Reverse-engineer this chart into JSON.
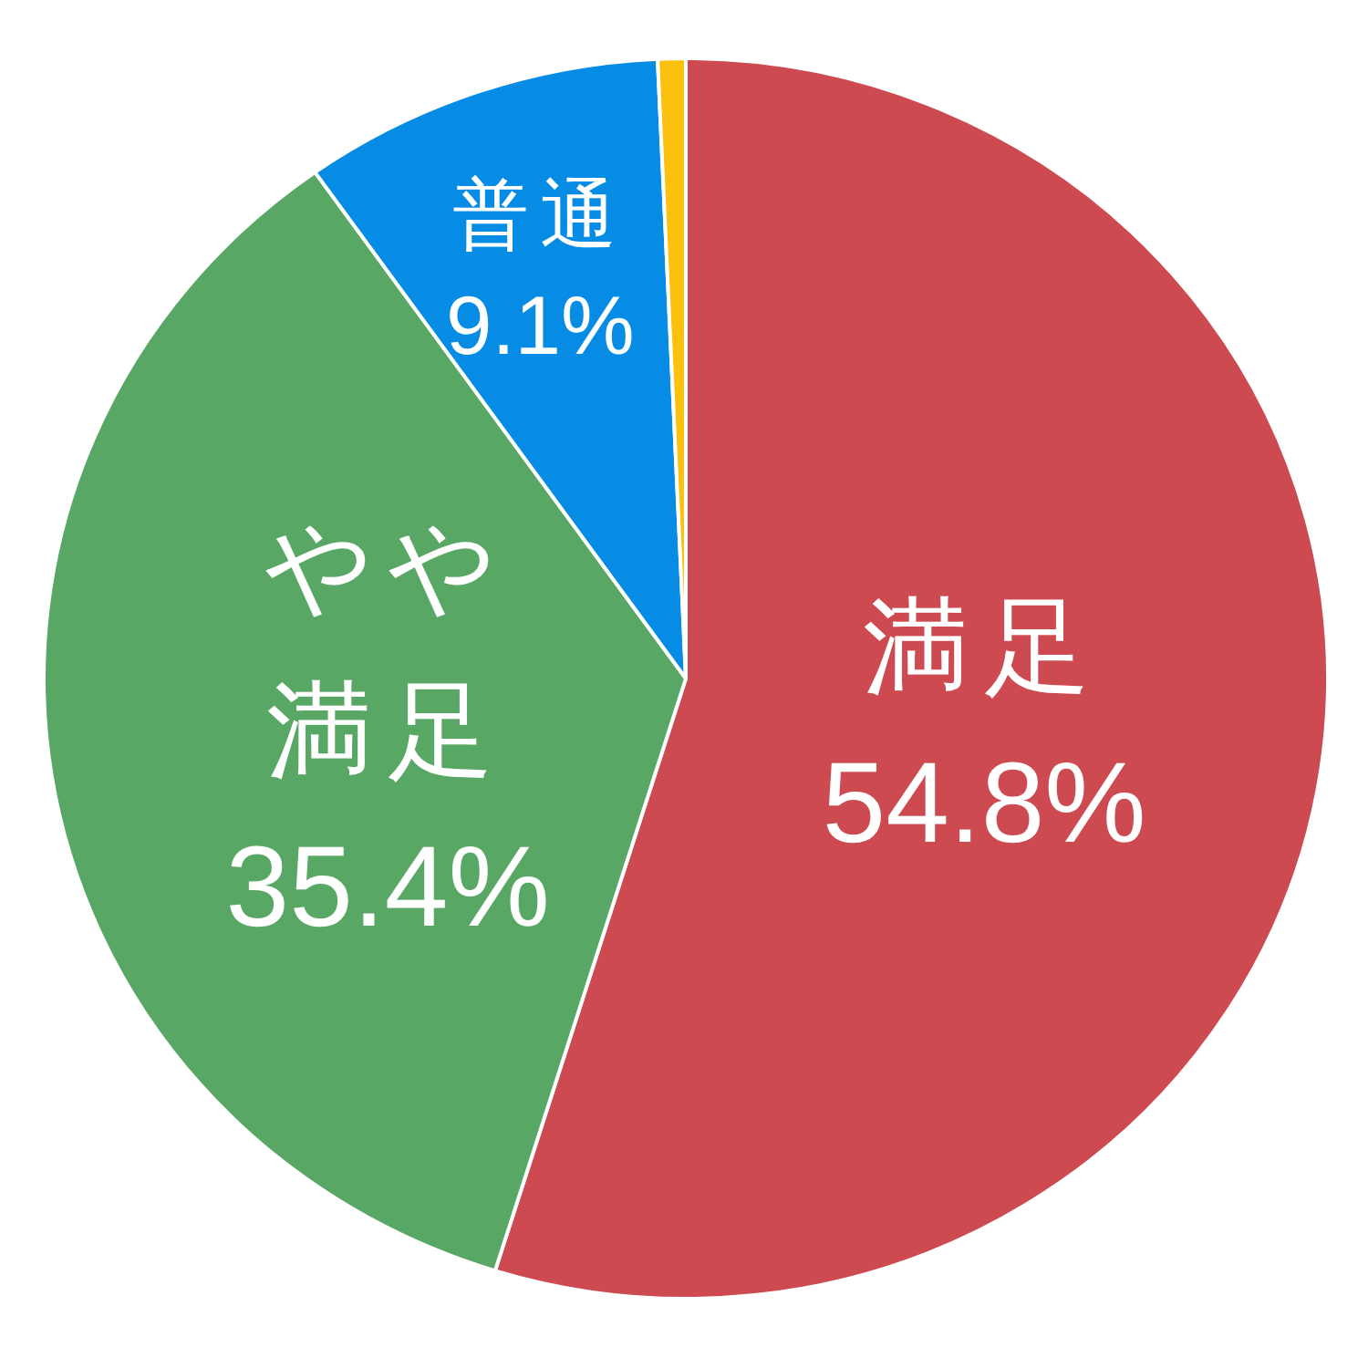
{
  "chart_data": {
    "type": "pie",
    "categories": [
      "満足",
      "やや満足",
      "普通",
      null
    ],
    "values": [
      54.8,
      35.4,
      9.1,
      0.7
    ],
    "colors": [
      "#cd4a50",
      "#59a765",
      "#068ce4",
      "#fcc10e"
    ],
    "value_labels": [
      "54.8%",
      "35.4%",
      "9.1%",
      null
    ]
  }
}
